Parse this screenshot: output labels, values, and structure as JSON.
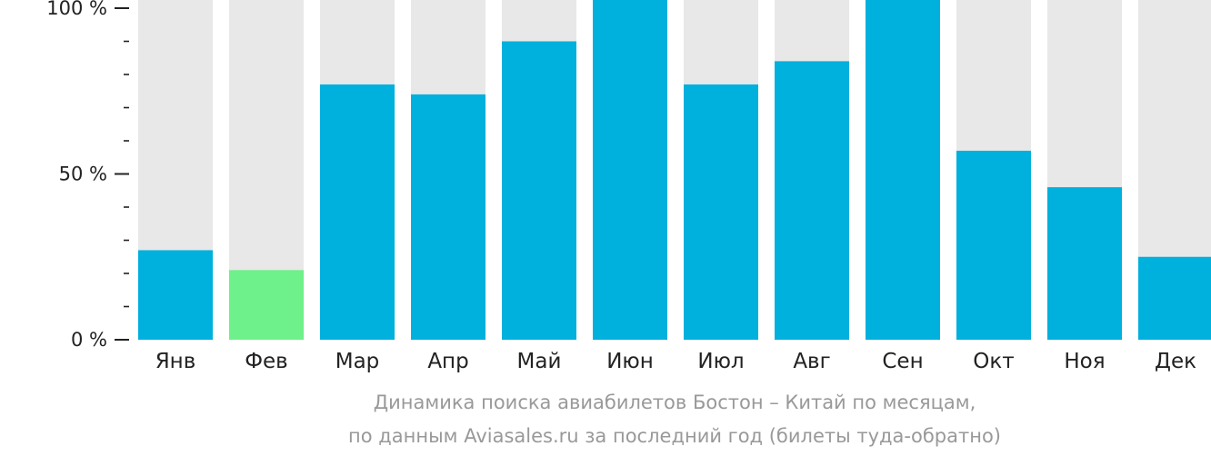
{
  "chart_data": {
    "type": "bar",
    "categories": [
      "Янв",
      "Фев",
      "Мар",
      "Апр",
      "Май",
      "Июн",
      "Июл",
      "Авг",
      "Сен",
      "Окт",
      "Ноя",
      "Дек"
    ],
    "values": [
      27,
      21,
      77,
      74,
      90,
      103,
      77,
      84,
      105,
      57,
      46,
      25
    ],
    "ylim": [
      0,
      100
    ],
    "yticks": [
      {
        "value": 0,
        "label": "0 %"
      },
      {
        "value": 50,
        "label": "50 %"
      },
      {
        "value": 100,
        "label": "100 %"
      }
    ],
    "minor_step": 10,
    "highlight_index": 1,
    "grid": false,
    "colors": {
      "bar": "#00b0dd",
      "highlight": "#6ef08a",
      "background_bar": "#e8e8e8",
      "axis": "#222222",
      "caption": "#999999"
    },
    "caption_line1": "Динамика поиска авиабилетов Бостон – Китай по месяцам,",
    "caption_line2": "по данным Aviasales.ru за последний год (билеты туда-обратно)"
  }
}
